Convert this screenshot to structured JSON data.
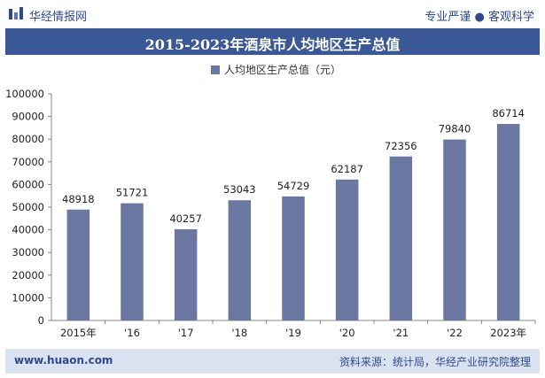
{
  "header": {
    "brand": "华经情报网",
    "tagline": "专业严谨 ● 客观科学"
  },
  "title": "2015-2023年酒泉市人均地区生产总值",
  "footer": {
    "site": "www.huaon.com",
    "source": "资料来源：统计局，华经产业研究院整理"
  },
  "colors": {
    "bar": "#6a77a0",
    "title_bg": "#3b5896",
    "footer_bg": "#d9e2f1"
  },
  "chart_data": {
    "type": "bar",
    "categories": [
      "2015年",
      "'16",
      "'17",
      "'18",
      "'19",
      "'20",
      "'21",
      "'22",
      "2023年"
    ],
    "series": [
      {
        "name": "人均地区生产总值（元）",
        "values": [
          48918,
          51721,
          40257,
          53043,
          54729,
          62187,
          72356,
          79840,
          86714
        ]
      }
    ],
    "ylim": [
      0,
      100000
    ],
    "yticks": [
      0,
      10000,
      20000,
      30000,
      40000,
      50000,
      60000,
      70000,
      80000,
      90000,
      100000
    ],
    "legend_position": "top-center",
    "grid": false
  }
}
